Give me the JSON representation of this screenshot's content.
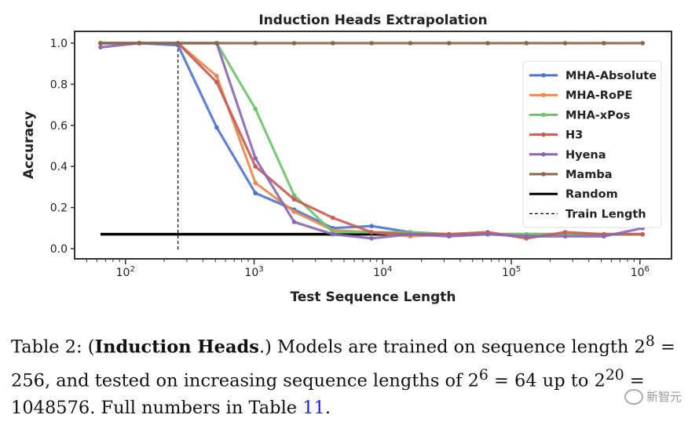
{
  "chart_data": {
    "type": "line",
    "title": "Induction Heads Extrapolation",
    "xlabel": "Test Sequence Length",
    "ylabel": "Accuracy",
    "xscale": "log",
    "xlim": [
      45,
      1500000
    ],
    "ylim": [
      -0.03,
      1.05
    ],
    "yticks": [
      "0.0",
      "0.2",
      "0.4",
      "0.6",
      "0.8",
      "1.0"
    ],
    "xticks": [
      {
        "b": "10",
        "e": "2",
        "v": 100
      },
      {
        "b": "10",
        "e": "3",
        "v": 1000
      },
      {
        "b": "10",
        "e": "4",
        "v": 10000
      },
      {
        "b": "10",
        "e": "5",
        "v": 100000
      },
      {
        "b": "10",
        "e": "6",
        "v": 1000000
      }
    ],
    "x": [
      64,
      128,
      256,
      512,
      1024,
      2048,
      4096,
      8192,
      16384,
      32768,
      65536,
      131072,
      262144,
      524288,
      1048576
    ],
    "series": [
      {
        "name": "MHA-Absolute",
        "color": "#4c72d0",
        "values": [
          1,
          1,
          0.99,
          0.59,
          0.27,
          0.19,
          0.1,
          0.11,
          0.08,
          null,
          null,
          null,
          null,
          null,
          null
        ]
      },
      {
        "name": "MHA-RoPE",
        "color": "#e8884a",
        "values": [
          1,
          1,
          1,
          0.84,
          0.32,
          0.18,
          0.09,
          0.08,
          0.06,
          null,
          null,
          null,
          null,
          null,
          null
        ]
      },
      {
        "name": "MHA-xPos",
        "color": "#6cc56a",
        "values": [
          1,
          1,
          1,
          1,
          0.68,
          0.26,
          0.08,
          0.08,
          0.08,
          null,
          null,
          null,
          null,
          null,
          null
        ]
      },
      {
        "name": "H3",
        "color": "#c95b55",
        "values": [
          1,
          1,
          1,
          0.81,
          0.4,
          0.24,
          0.15,
          0.08,
          0.07,
          0.07,
          0.08,
          0.05,
          0.08,
          0.07,
          0.07
        ]
      },
      {
        "name": "Hyena",
        "color": "#8a66b5",
        "values": [
          0.98,
          1,
          1,
          1,
          0.44,
          0.13,
          0.07,
          0.05,
          0.07,
          0.06,
          0.07,
          0.06,
          0.06,
          0.06,
          0.1
        ]
      },
      {
        "name": "Mamba",
        "color": "#8c6448",
        "values": [
          1,
          1,
          1,
          1,
          1,
          1,
          1,
          1,
          1,
          1,
          1,
          1,
          1,
          1,
          1
        ]
      }
    ],
    "random": {
      "name": "Random",
      "value": 0.07,
      "color": "#000000"
    },
    "train_length": {
      "name": "Train Length",
      "value": 256
    },
    "legend": "right"
  },
  "caption": {
    "prefix": "Table 2: (",
    "bold": "Induction Heads",
    "text1": ".)  Models are trained on sequence length 2",
    "e1": "8",
    "text2": " = 256, and tested on increasing sequence lengths of 2",
    "e2": "6",
    "text3": " = 64 up to 2",
    "e3": "20",
    "text4": " = 1048576. Full numbers in Table ",
    "link": "11",
    "end": "."
  },
  "watermark": "新智元"
}
